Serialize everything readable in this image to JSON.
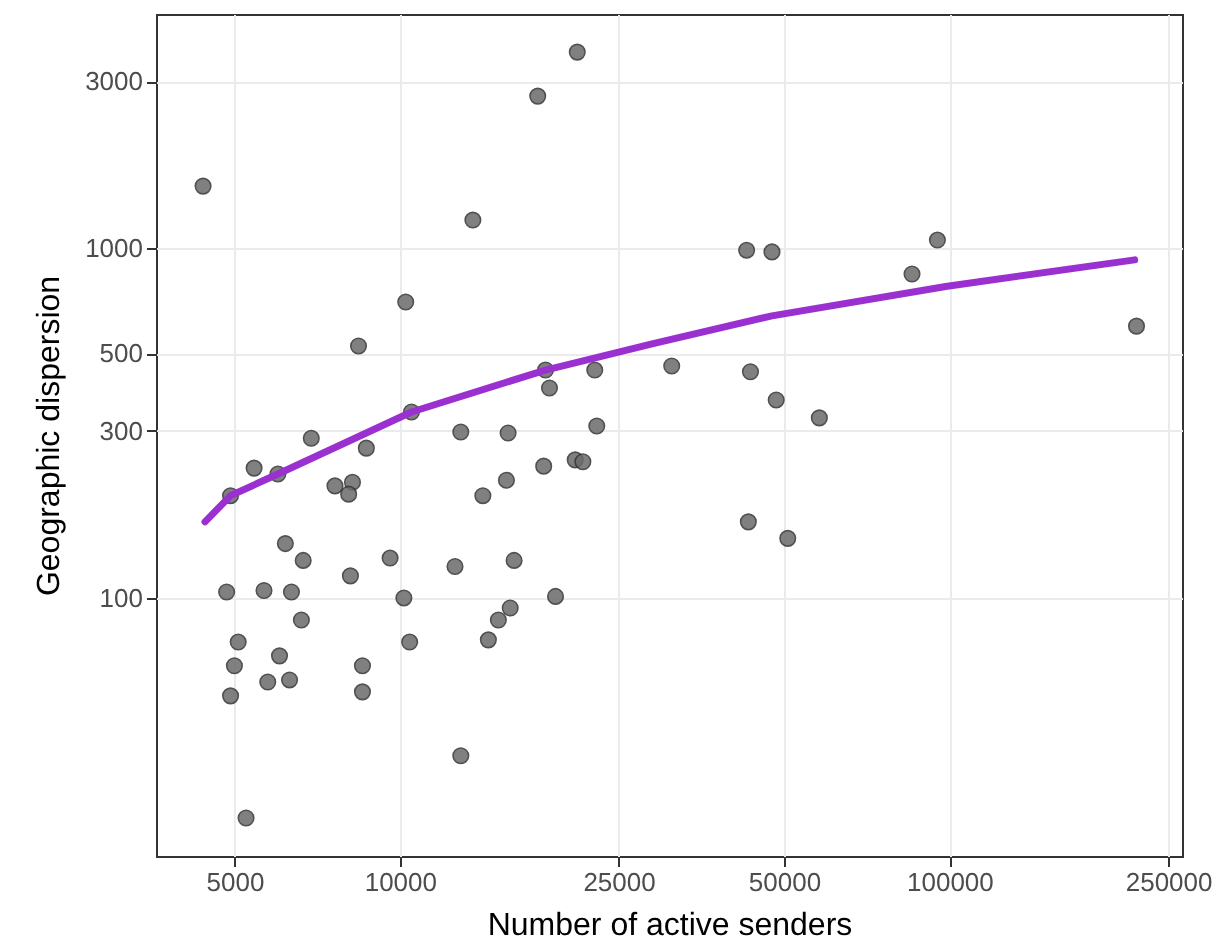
{
  "chart_data": {
    "type": "scatter",
    "xlabel": "Number of active senders",
    "ylabel": "Geographic dispersion",
    "log": "xy",
    "grid": true,
    "xlim": [
      3600,
      265000
    ],
    "xticks": [
      5000,
      10000,
      25000,
      50000,
      100000,
      250000
    ],
    "ylim": [
      18.3,
      4665
    ],
    "yticks": [
      100,
      300,
      500,
      1000,
      3000
    ],
    "series": [
      {
        "marker": "circle",
        "color": "#6b6b6b",
        "x": [
          4385,
          21030,
          17820,
          13580,
          10250,
          8410,
          18410,
          22630,
          31240,
          18720,
          10500,
          22820,
          6900,
          12910,
          15740,
          8690,
          4920,
          5430,
          6000,
          7620,
          8200,
          8070,
          14160,
          15630,
          18270,
          20850,
          21530,
          6190,
          6670,
          4840,
          5660,
          6350,
          6620,
          5080,
          5000,
          4920,
          6040,
          5750,
          6300,
          8130,
          9600,
          10170,
          10420,
          8550,
          8550,
          12600,
          16140,
          19200,
          15880,
          15110,
          14490,
          12910,
          5250,
          42760,
          47550,
          95100,
          85500,
          219000,
          43450,
          48400,
          57990,
          43070,
          50800
        ],
        "values": [
          1503,
          3630,
          2718,
          1202,
          701,
          525,
          448,
          448,
          460,
          398,
          340,
          310,
          286,
          298,
          296,
          268,
          196,
          235,
          226,
          209,
          214,
          198,
          196,
          217,
          238,
          248,
          245,
          143,
          128,
          104,
          105,
          104,
          86.5,
          74.8,
          64,
          52.5,
          68.3,
          57.5,
          58.3,
          115.6,
          130,
          100,
          74.8,
          64,
          53.9,
          123,
          128,
          101,
          93.6,
          86.5,
          75.9,
          35.4,
          23.5,
          986,
          975,
          1054,
          843,
          598,
          443,
          368,
          327,
          165,
          148
        ]
      },
      {
        "type": "line",
        "color": "#9b30d0",
        "x": [
          4420,
          4920,
          6000,
          10500,
          18410,
          28770,
          47550,
          99100,
          217300
        ],
        "values": [
          165,
          196,
          226,
          340,
          448,
          532,
          640,
          778,
          925
        ]
      }
    ]
  }
}
